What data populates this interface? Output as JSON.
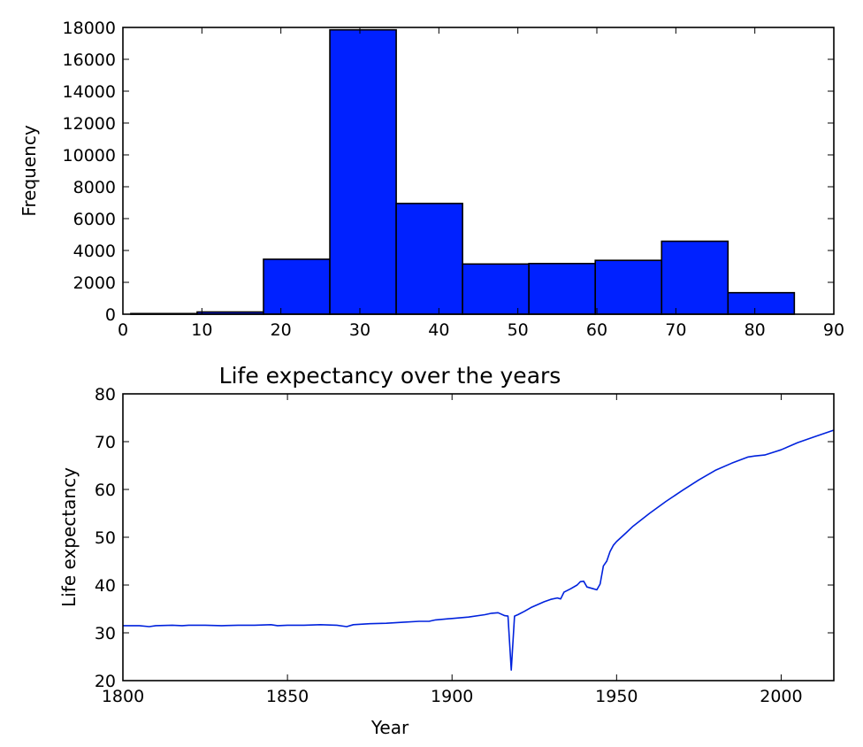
{
  "chart_data": [
    {
      "type": "bar",
      "title": "",
      "xlabel": "",
      "ylabel": "Frequency",
      "xlim": [
        0,
        90
      ],
      "ylim": [
        0,
        18000
      ],
      "xticks": [
        0,
        10,
        20,
        30,
        40,
        50,
        60,
        70,
        80,
        90
      ],
      "yticks": [
        0,
        2000,
        4000,
        6000,
        8000,
        10000,
        12000,
        14000,
        16000,
        18000
      ],
      "bin_edges": [
        1.0,
        9.4,
        17.8,
        26.2,
        34.6,
        43.0,
        51.4,
        59.8,
        68.2,
        76.6,
        85.0
      ],
      "values": [
        40,
        140,
        3450,
        17850,
        6950,
        3150,
        3180,
        3380,
        4580,
        1350
      ],
      "grid": false,
      "colors": {
        "bar": "#0021ff",
        "edge": "#000000"
      }
    },
    {
      "type": "line",
      "title": "Life expectancy over the years",
      "xlabel": "Year",
      "ylabel": "Life expectancy",
      "xlim": [
        1800,
        2016
      ],
      "ylim": [
        20,
        80
      ],
      "xticks": [
        1800,
        1850,
        1900,
        1950,
        2000
      ],
      "yticks": [
        20,
        30,
        40,
        50,
        60,
        70,
        80
      ],
      "grid": false,
      "series": [
        {
          "color": "#0022dd",
          "x": [
            1800,
            1805,
            1808,
            1810,
            1815,
            1818,
            1820,
            1825,
            1830,
            1835,
            1840,
            1845,
            1847,
            1850,
            1855,
            1860,
            1865,
            1868,
            1870,
            1875,
            1880,
            1885,
            1890,
            1893,
            1895,
            1900,
            1905,
            1910,
            1912,
            1914,
            1916,
            1917,
            1918,
            1919,
            1920,
            1922,
            1924,
            1926,
            1928,
            1930,
            1932,
            1933,
            1934,
            1936,
            1938,
            1939,
            1940,
            1941,
            1943,
            1944,
            1945,
            1946,
            1947,
            1948,
            1949,
            1950,
            1953,
            1955,
            1960,
            1965,
            1970,
            1975,
            1980,
            1985,
            1990,
            1992,
            1995,
            2000,
            2005,
            2010,
            2016
          ],
          "y": [
            31.5,
            31.5,
            31.3,
            31.5,
            31.6,
            31.5,
            31.6,
            31.6,
            31.5,
            31.6,
            31.6,
            31.7,
            31.5,
            31.6,
            31.6,
            31.7,
            31.6,
            31.3,
            31.7,
            31.9,
            32.0,
            32.2,
            32.4,
            32.4,
            32.7,
            33.0,
            33.3,
            33.8,
            34.1,
            34.2,
            33.6,
            33.5,
            22.2,
            33.5,
            33.8,
            34.5,
            35.3,
            35.9,
            36.5,
            37.0,
            37.3,
            37.1,
            38.5,
            39.2,
            40.0,
            40.7,
            40.8,
            39.6,
            39.2,
            39.0,
            40.2,
            44.0,
            45.0,
            47.0,
            48.3,
            49.1,
            51.0,
            52.3,
            55.0,
            57.5,
            59.8,
            62.0,
            64.0,
            65.5,
            66.8,
            67.0,
            67.2,
            68.3,
            69.8,
            71.0,
            72.4
          ]
        }
      ]
    }
  ]
}
